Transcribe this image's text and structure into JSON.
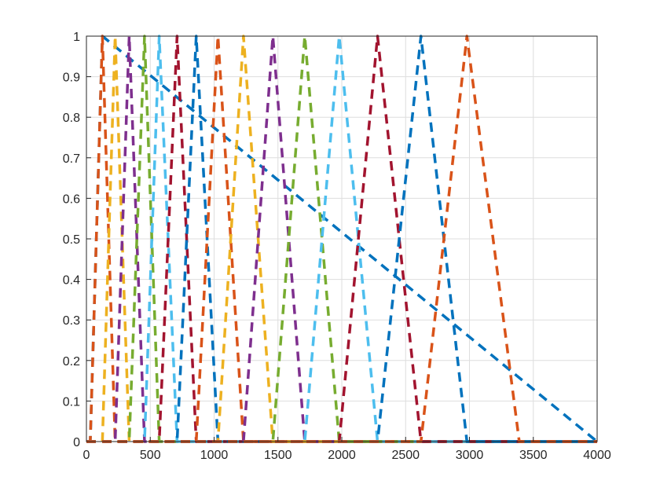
{
  "chart_data": {
    "type": "line",
    "title": "",
    "xlabel": "",
    "ylabel": "",
    "xlim": [
      0,
      4000
    ],
    "ylim": [
      0,
      1
    ],
    "x_ticks": [
      0,
      500,
      1000,
      1500,
      2000,
      2500,
      3000,
      3500,
      4000
    ],
    "y_ticks": [
      0,
      0.1,
      0.2,
      0.3,
      0.4,
      0.5,
      0.6,
      0.7,
      0.8,
      0.9,
      1
    ],
    "x_tick_labels": [
      "0",
      "500",
      "1000",
      "1500",
      "2000",
      "2500",
      "3000",
      "3500",
      "4000"
    ],
    "y_tick_labels": [
      "0",
      "0.1",
      "0.2",
      "0.3",
      "0.4",
      "0.5",
      "0.6",
      "0.7",
      "0.8",
      "0.9",
      "1"
    ],
    "grid": true,
    "line_style": "dashed",
    "colors": [
      "#0072BD",
      "#D95319",
      "#EDB120",
      "#7E2F8E",
      "#77AC30",
      "#4DBEEE",
      "#A2142F"
    ],
    "series": [
      {
        "x": [
          0,
          30,
          125,
          4000
        ],
        "y": [
          0,
          0,
          1,
          0
        ]
      },
      {
        "x": [
          0,
          30,
          125,
          225,
          4000
        ],
        "y": [
          0,
          0,
          1,
          0,
          0
        ]
      },
      {
        "x": [
          0,
          125,
          225,
          335,
          4000
        ],
        "y": [
          0,
          0,
          1,
          0,
          0
        ]
      },
      {
        "x": [
          0,
          225,
          335,
          455,
          4000
        ],
        "y": [
          0,
          0,
          1,
          0,
          0
        ]
      },
      {
        "x": [
          0,
          335,
          455,
          570,
          4000
        ],
        "y": [
          0,
          0,
          1,
          0,
          0
        ]
      },
      {
        "x": [
          0,
          455,
          570,
          710,
          4000
        ],
        "y": [
          0,
          0,
          1,
          0,
          0
        ]
      },
      {
        "x": [
          0,
          570,
          710,
          860,
          4000
        ],
        "y": [
          0,
          0,
          1,
          0,
          0
        ]
      },
      {
        "x": [
          0,
          710,
          860,
          1030,
          4000
        ],
        "y": [
          0,
          0,
          1,
          0,
          0
        ]
      },
      {
        "x": [
          0,
          860,
          1030,
          1230,
          4000
        ],
        "y": [
          0,
          0,
          1,
          0,
          0
        ]
      },
      {
        "x": [
          0,
          1030,
          1230,
          1460,
          4000
        ],
        "y": [
          0,
          0,
          1,
          0,
          0
        ]
      },
      {
        "x": [
          0,
          1230,
          1460,
          1710,
          4000
        ],
        "y": [
          0,
          0,
          1,
          0,
          0
        ]
      },
      {
        "x": [
          0,
          1460,
          1710,
          1980,
          4000
        ],
        "y": [
          0,
          0,
          1,
          0,
          0
        ]
      },
      {
        "x": [
          0,
          1710,
          1980,
          2280,
          4000
        ],
        "y": [
          0,
          0,
          1,
          0,
          0
        ]
      },
      {
        "x": [
          0,
          1980,
          2280,
          2620,
          4000
        ],
        "y": [
          0,
          0,
          1,
          0,
          0
        ]
      },
      {
        "x": [
          0,
          2280,
          2620,
          2980,
          4000
        ],
        "y": [
          0,
          0,
          1,
          0,
          0
        ]
      },
      {
        "x": [
          0,
          2620,
          2980,
          3390,
          4000
        ],
        "y": [
          0,
          0,
          1,
          0,
          0
        ]
      }
    ]
  }
}
